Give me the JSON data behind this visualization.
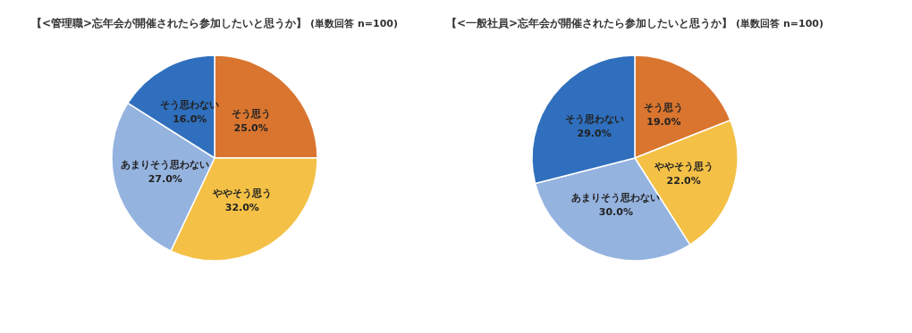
{
  "chart_data": [
    {
      "type": "pie",
      "title": "【<管理職>忘年会が開催されたら参加したいと思うか】",
      "subtitle": "(単数回答 n=100)",
      "categories": [
        "そう思う",
        "ややそう思う",
        "あまりそう思わない",
        "そう思わない"
      ],
      "values": [
        25,
        32,
        27,
        16
      ],
      "value_labels": [
        "25.0%",
        "32.0%",
        "27.0%",
        "16.0%"
      ],
      "colors": [
        "#d9752f",
        "#f4c146",
        "#95b3df",
        "#2f6fbd"
      ],
      "legend": false
    },
    {
      "type": "pie",
      "title": "【<一般社員>忘年会が開催されたら参加したいと思うか】",
      "subtitle": "(単数回答 n=100)",
      "categories": [
        "そう思う",
        "ややそう思う",
        "あまりそう思わない",
        "そう思わない"
      ],
      "values": [
        19,
        22,
        30,
        29
      ],
      "value_labels": [
        "19.0%",
        "22.0%",
        "30.0%",
        "29.0%"
      ],
      "colors": [
        "#d9752f",
        "#f4c146",
        "#95b3df",
        "#2f6fbd"
      ],
      "legend": false
    }
  ]
}
